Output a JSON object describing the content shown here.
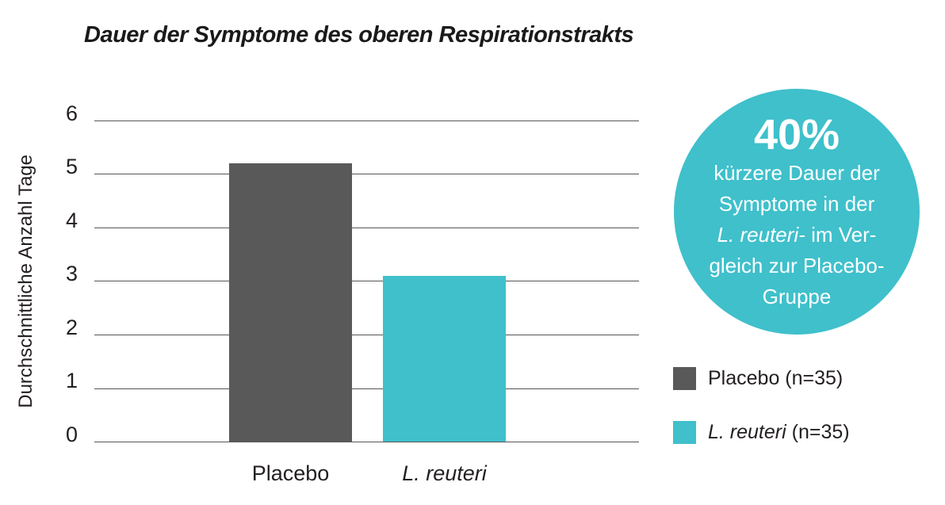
{
  "title": "Dauer der Symptome des oberen Respirationstrakts",
  "chart_data": {
    "type": "bar",
    "title": "Dauer der Symptome des oberen Respirationstrakts",
    "categories": [
      "Placebo",
      "L. reuteri"
    ],
    "values": [
      5.2,
      3.1
    ],
    "xlabel": "",
    "ylabel": "Durchschnittliche Anzahl Tage",
    "ylim": [
      0,
      6
    ],
    "yticks": [
      "6",
      "5",
      "4",
      "3",
      "2",
      "1",
      "0"
    ],
    "grid": "horizontal gridlines at each integer 0-6",
    "legend_position": "right, below callout circle",
    "series": [
      {
        "name": "Placebo (n=35)",
        "value": 5.2,
        "color": "#595959"
      },
      {
        "name": "L. reuteri (n=35)",
        "value": 3.1,
        "color": "#3FC0CB"
      }
    ]
  },
  "y_axis": {
    "label": "Durchschnittliche Anzahl Tage"
  },
  "x_axis": {
    "label_placebo": "Placebo",
    "label_reuteri": "L. reuteri"
  },
  "callout": {
    "big": "40%",
    "line1": "kürzere Dauer der",
    "line2": "Symptome in der",
    "line3_italic": "L. reuteri-",
    "line3_rest": " im Ver-",
    "line4": "gleich zur Placebo-",
    "line5": "Gruppe"
  },
  "legend": {
    "item1_label": "Placebo (n=35)",
    "item2_label_italic": "L. reuteri",
    "item2_label_rest": " (n=35)"
  },
  "colors": {
    "placebo": "#595959",
    "reuteri": "#3FC0CB",
    "callout": "#3FC0CB",
    "gridline": "#555657",
    "text": "#231F20"
  }
}
